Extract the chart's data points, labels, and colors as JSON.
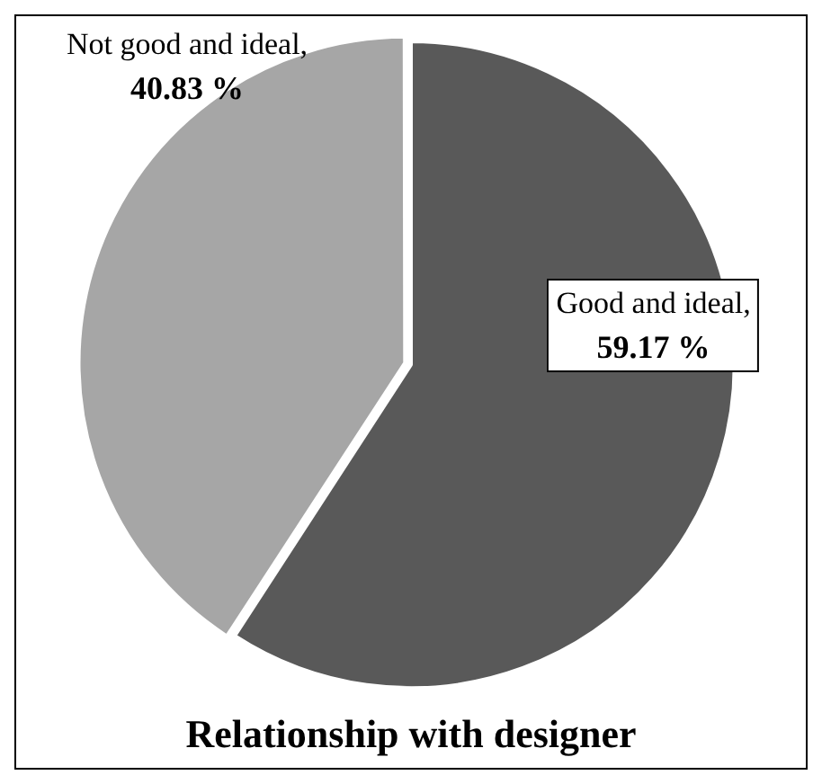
{
  "chart_data": {
    "type": "pie",
    "title": "Relationship with designer",
    "categories": [
      "Good and ideal",
      "Not good and ideal"
    ],
    "values": [
      59.17,
      40.83
    ],
    "colors": [
      "#595959",
      "#a6a6a6"
    ],
    "value_labels": [
      ",\n59.17 %",
      ",\n40.83 %"
    ],
    "legend": false
  }
}
